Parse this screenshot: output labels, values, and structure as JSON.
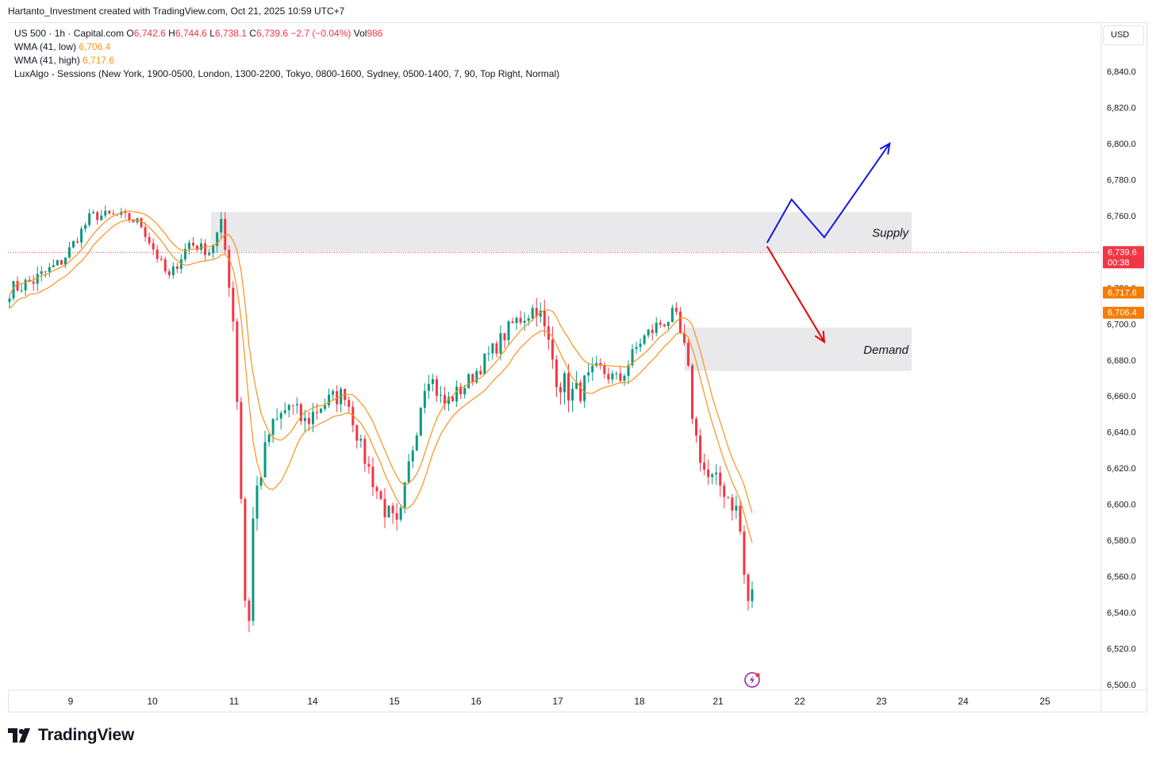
{
  "header": {
    "caption": "Hartanto_Investment created with TradingView.com, Oct 21, 2025 10:59 UTC+7"
  },
  "legend": {
    "symbol": "US 500 · 1h · Capital.com",
    "o_label": "O",
    "o_value": "6,742.6",
    "h_label": "H",
    "h_value": "6,744.6",
    "l_label": "L",
    "l_value": "6,738.1",
    "c_label": "C",
    "c_value": "6,739.6",
    "change": "−2.7 (−0.04%)",
    "vol_label": "Vol",
    "vol_value": "986",
    "wma_low_label": "WMA (41, low)",
    "wma_low_value": "6,706.4",
    "wma_high_label": "WMA (41, high)",
    "wma_high_value": "6,717.6",
    "sessions": "LuxAlgo - Sessions (New York, 1900-0500, London, 1300-2200, Tokyo, 0800-1600, Sydney, 0500-1400, 7, 90, Top Right, Normal)"
  },
  "toolbar": {
    "currency": "USD"
  },
  "brand": {
    "name": "TradingView"
  },
  "colors": {
    "up": "#089981",
    "down": "#f23645",
    "wma": "#f7931a",
    "zone": "#e9e9eb",
    "bull_arrow": "#1414e6",
    "bear_arrow": "#e60000"
  },
  "chart_data": {
    "type": "candlestick",
    "symbol": "US 500",
    "timeframe": "1h",
    "x_ticks": [
      "9",
      "10",
      "11",
      "14",
      "15",
      "16",
      "17",
      "18",
      "21",
      "22",
      "23",
      "24",
      "25"
    ],
    "y_ticks": [
      "6,500.0",
      "6,520.0",
      "6,540.0",
      "6,560.0",
      "6,580.0",
      "6,600.0",
      "6,620.0",
      "6,640.0",
      "6,660.0",
      "6,680.0",
      "6,700.0",
      "6,720.0",
      "6,740.0",
      "6,760.0",
      "6,780.0",
      "6,800.0",
      "6,820.0",
      "6,840.0"
    ],
    "ylim": [
      6498,
      6860
    ],
    "last_price": {
      "label": "6,739.6",
      "value": 6739.6,
      "countdown": "00:38"
    },
    "wma_high_tag": {
      "label": "6,717.6",
      "value": 6717.6
    },
    "wma_low_tag": {
      "label": "6,706.4",
      "value": 6706.4
    },
    "zones": [
      {
        "label": "Supply",
        "from_day": "10",
        "to_day": "23",
        "top": 6762,
        "bottom": 6740
      },
      {
        "label": "Demand",
        "from_day": "20",
        "to_day": "23",
        "top": 6698,
        "bottom": 6674
      }
    ],
    "projection_up": [
      [
        21.6,
        6745
      ],
      [
        21.9,
        6769
      ],
      [
        22.3,
        6748
      ],
      [
        23.1,
        6800
      ]
    ],
    "projection_down": [
      [
        21.6,
        6743
      ],
      [
        22.3,
        6690
      ]
    ],
    "anchors": [
      [
        8.2,
        6718,
        3
      ],
      [
        8.55,
        6724,
        3
      ],
      [
        8.9,
        6735,
        2
      ],
      [
        9.25,
        6760,
        2
      ],
      [
        9.6,
        6760,
        2
      ],
      [
        9.85,
        6756,
        2
      ],
      [
        10.2,
        6725,
        2
      ],
      [
        10.45,
        6745,
        2
      ],
      [
        10.7,
        6740,
        2
      ],
      [
        10.85,
        6755,
        3
      ],
      [
        10.98,
        6710,
        4
      ],
      [
        11.05,
        6650,
        4
      ],
      [
        11.12,
        6570,
        4
      ],
      [
        11.17,
        6515,
        4
      ],
      [
        11.25,
        6600,
        5
      ],
      [
        11.45,
        6640,
        4
      ],
      [
        11.7,
        6655,
        4
      ],
      [
        11.9,
        6645,
        4
      ],
      [
        12.1,
        6655,
        4
      ],
      [
        12.4,
        6662,
        3
      ],
      [
        12.6,
        6630,
        3
      ],
      [
        12.85,
        6600,
        4
      ],
      [
        13.05,
        6585,
        4
      ],
      [
        13.25,
        6640,
        5
      ],
      [
        13.4,
        6675,
        4
      ],
      [
        13.6,
        6655,
        3
      ],
      [
        13.85,
        6665,
        3
      ],
      [
        14.2,
        6685,
        3
      ],
      [
        14.45,
        6700,
        3
      ],
      [
        14.75,
        6710,
        4
      ],
      [
        15.0,
        6670,
        5
      ],
      [
        15.2,
        6660,
        5
      ],
      [
        15.5,
        6675,
        3
      ],
      [
        15.75,
        6668,
        3
      ],
      [
        16.0,
        6690,
        3
      ],
      [
        16.25,
        6700,
        3
      ],
      [
        16.45,
        6705,
        3
      ],
      [
        16.6,
        6680,
        4
      ],
      [
        16.7,
        6640,
        4
      ],
      [
        16.85,
        6615,
        4
      ],
      [
        17.05,
        6610,
        4
      ],
      [
        17.25,
        6595,
        4
      ],
      [
        17.35,
        6545,
        4
      ],
      [
        17.5,
        6555,
        4
      ],
      [
        17.65,
        6610,
        4
      ],
      [
        17.9,
        6640,
        4
      ],
      [
        18.1,
        6665,
        4
      ],
      [
        18.3,
        6685,
        3
      ],
      [
        18.55,
        6690,
        3
      ],
      [
        18.8,
        6690,
        3
      ],
      [
        19.0,
        6680,
        3
      ],
      [
        19.15,
        6720,
        3
      ],
      [
        19.3,
        6730,
        3
      ],
      [
        19.6,
        6740,
        2
      ],
      [
        19.85,
        6742,
        2
      ],
      [
        20.0,
        6740,
        1
      ]
    ]
  }
}
